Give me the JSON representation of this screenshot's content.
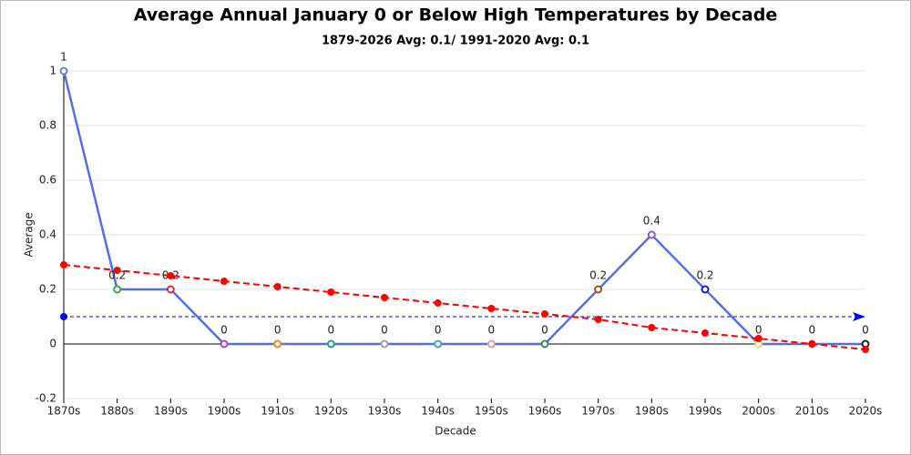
{
  "chart_data": {
    "type": "line",
    "title": "Average Annual January 0 or Below High Temperatures by Decade",
    "subtitle": "1879-2026 Avg: 0.1/ 1991-2020 Avg: 0.1",
    "x_label": "Decade",
    "y_label": "Average",
    "categories": [
      "1870s",
      "1880s",
      "1890s",
      "1900s",
      "1910s",
      "1920s",
      "1930s",
      "1940s",
      "1950s",
      "1960s",
      "1970s",
      "1980s",
      "1990s",
      "2000s",
      "2010s",
      "2020s"
    ],
    "series": [
      {
        "color": "#5470e0",
        "values": [
          1,
          0.2,
          0.2,
          0,
          0,
          0,
          0,
          0,
          0,
          0,
          0.2,
          0.4,
          0.2,
          0,
          0,
          0
        ],
        "marker_colors": [
          "#6a7fd8",
          "#3aa84a",
          "#c8304a",
          "#b04ab0",
          "#e08a20",
          "#20a090",
          "#a0a0a0",
          "#4aa0c8",
          "#e0a0a0",
          "#3a8a5a",
          "#a05020",
          "#9060c0",
          "#1020c0",
          "#e0e060",
          "#c0a0a0",
          "#202020"
        ]
      },
      {
        "color": "#ff0000",
        "dashed": true,
        "values": [
          0.29,
          0.27,
          0.25,
          0.23,
          0.21,
          0.19,
          0.17,
          0.15,
          0.13,
          0.11,
          0.09,
          0.06,
          0.04,
          0.02,
          0,
          -0.02
        ]
      }
    ],
    "reference_line": {
      "value": 0.1,
      "color": "#0000ff"
    },
    "ylim": [
      -0.2,
      1
    ],
    "yticks": [
      -0.2,
      0,
      0.2,
      0.4,
      0.6,
      0.8,
      1
    ],
    "grid": true
  }
}
